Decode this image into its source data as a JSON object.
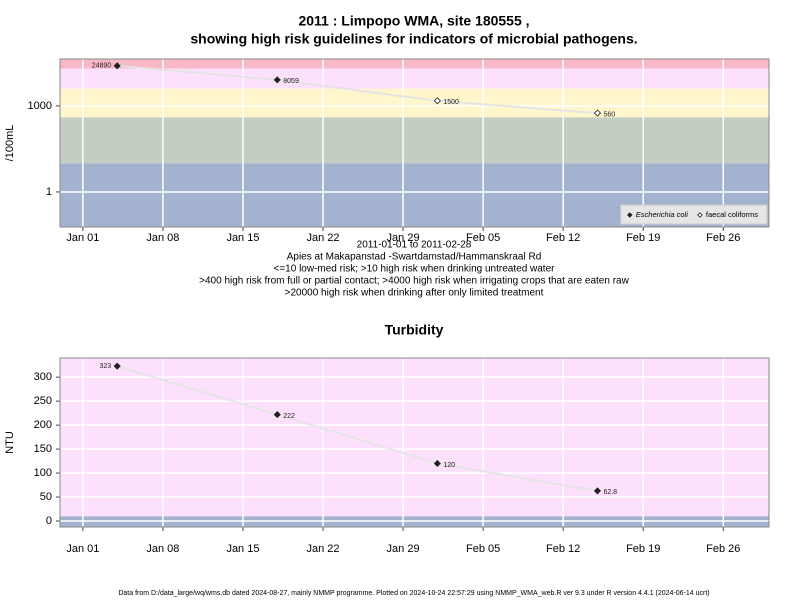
{
  "chart_data": [
    {
      "type": "line",
      "title": [
        "2011 : Limpopo WMA, site 180555 ,",
        "showing high risk guidelines for indicators of microbial pathogens."
      ],
      "ylabel": "/100mL",
      "notes": [
        "2011-01-01 to 2011-02-28",
        "Apies at Makapanstad -Swartdamstad/Hammanskraal Rd",
        "<=10 low-med risk; >10 high risk when drinking untreated water",
        ">400 high risk from full or partial contact; >4000 high risk when irrigating crops that are eaten raw",
        ">20000 high risk when drinking after only limited treatment"
      ],
      "log_scale": true,
      "x": [
        "2011-01-04",
        "2011-01-18",
        "2011-02-01",
        "2011-02-15"
      ],
      "xlim": [
        "2010-12-30",
        "2011-03-02"
      ],
      "xticks": [
        {
          "value": "2011-01-01",
          "label": "Jan 01"
        },
        {
          "value": "2011-01-08",
          "label": "Jan 08"
        },
        {
          "value": "2011-01-15",
          "label": "Jan 15"
        },
        {
          "value": "2011-01-22",
          "label": "Jan 22"
        },
        {
          "value": "2011-01-29",
          "label": "Jan 29"
        },
        {
          "value": "2011-02-05",
          "label": "Feb 05"
        },
        {
          "value": "2011-02-12",
          "label": "Feb 12"
        },
        {
          "value": "2011-02-19",
          "label": "Feb 19"
        },
        {
          "value": "2011-02-26",
          "label": "Feb 26"
        }
      ],
      "ylim": [
        0.06,
        43000
      ],
      "yticks": [
        1,
        1000
      ],
      "grid": true,
      "bands": {
        "breaks": [
          10,
          400,
          4000,
          20000
        ],
        "colors": [
          "#a3b3cf",
          "#c4cdc1",
          "#fff7cb",
          "#fde0fc",
          "#f9b8c8"
        ]
      },
      "line_color": "#e4e4e4",
      "marker_color": "#222222",
      "legend": "bottom right",
      "series": [
        {
          "name": "Escherichia coli",
          "marker": "filled",
          "values": [
            24890,
            8059,
            null,
            null
          ]
        },
        {
          "name": "faecal coliforms",
          "marker": "open",
          "values": [
            null,
            null,
            1500,
            560
          ]
        }
      ]
    },
    {
      "type": "line",
      "title": [
        "Turbidity"
      ],
      "ylabel": "NTU",
      "log_scale": false,
      "x": [
        "2011-01-04",
        "2011-01-18",
        "2011-02-01",
        "2011-02-15"
      ],
      "xlim": [
        "2010-12-30",
        "2011-03-02"
      ],
      "xticks": [
        {
          "value": "2011-01-01",
          "label": "Jan 01"
        },
        {
          "value": "2011-01-08",
          "label": "Jan 08"
        },
        {
          "value": "2011-01-15",
          "label": "Jan 15"
        },
        {
          "value": "2011-01-22",
          "label": "Jan 22"
        },
        {
          "value": "2011-01-29",
          "label": "Jan 29"
        },
        {
          "value": "2011-02-05",
          "label": "Feb 05"
        },
        {
          "value": "2011-02-12",
          "label": "Feb 12"
        },
        {
          "value": "2011-02-19",
          "label": "Feb 19"
        },
        {
          "value": "2011-02-26",
          "label": "Feb 26"
        }
      ],
      "ylim": [
        -12.5,
        340
      ],
      "yticks": [
        0,
        50,
        100,
        150,
        200,
        250,
        300
      ],
      "grid": true,
      "bands": {
        "breaks": [
          10
        ],
        "colors": [
          "#a3b3cf",
          "#fde0fc"
        ]
      },
      "line_color": "#e4e4e4",
      "marker_color": "#222222",
      "values": [
        323,
        222,
        120,
        62.8
      ]
    }
  ],
  "footer": "Data from D:/data_large/wq/wms.db dated 2024-08-27, mainly NMMP programme. Plotted on 2024-10-24 22:57:29 using NMMP_WMA_web.R ver 9.3 under R version 4.4.1 (2024-06-14 ucrt)"
}
